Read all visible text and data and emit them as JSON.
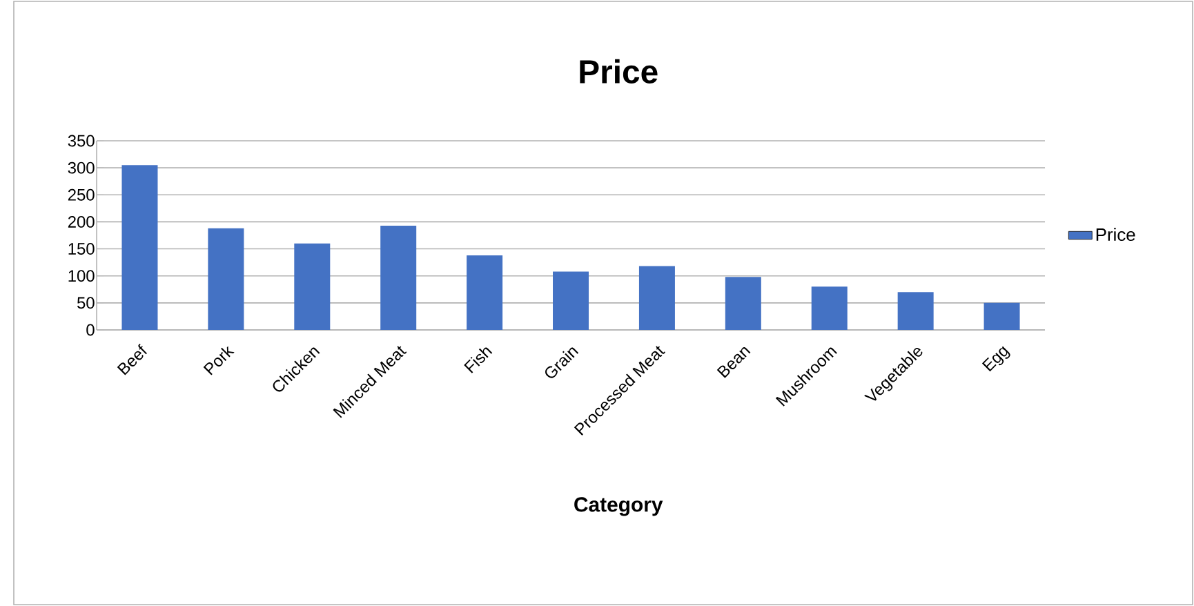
{
  "chart_data": {
    "type": "bar",
    "title": "Price",
    "xlabel": "Category",
    "categories": [
      "Beef",
      "Pork",
      "Chicken",
      "Minced Meat",
      "Fish",
      "Grain",
      "Processed Meat",
      "Bean",
      "Mushroom",
      "Vegetable",
      "Egg"
    ],
    "series": [
      {
        "name": "Price",
        "color": "#4472c4",
        "values": [
          305,
          188,
          160,
          193,
          138,
          108,
          118,
          98,
          80,
          70,
          50
        ]
      }
    ],
    "ylim": [
      0,
      350
    ],
    "yticks": [
      0,
      50,
      100,
      150,
      200,
      250,
      300,
      350
    ],
    "grid": "y",
    "legend": "right"
  }
}
